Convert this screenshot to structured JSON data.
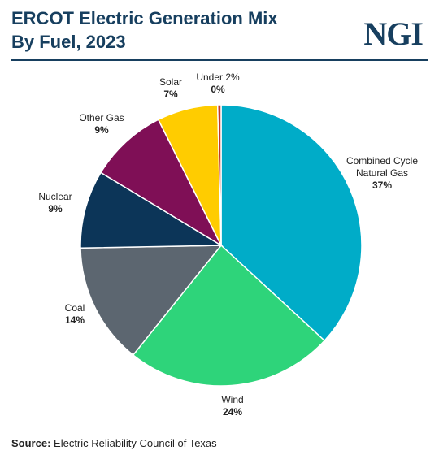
{
  "header": {
    "title_line1": "ERCOT Electric Generation Mix",
    "title_line2": "By Fuel, 2023",
    "logo": "NGI"
  },
  "footer": {
    "source_label": "Source:",
    "source_text": "Electric Reliability Council of Texas"
  },
  "chart_data": {
    "type": "pie",
    "title": "ERCOT Electric Generation Mix By Fuel, 2023",
    "slices": [
      {
        "name": [
          "Combined Cycle",
          "Natural Gas"
        ],
        "value": 37,
        "label": "37%",
        "color": "#00acc8"
      },
      {
        "name": [
          "Wind"
        ],
        "value": 24,
        "label": "24%",
        "color": "#2ed47a"
      },
      {
        "name": [
          "Coal"
        ],
        "value": 14,
        "label": "14%",
        "color": "#5c6670"
      },
      {
        "name": [
          "Nuclear"
        ],
        "value": 9,
        "label": "9%",
        "color": "#0c3558"
      },
      {
        "name": [
          "Other Gas"
        ],
        "value": 9,
        "label": "9%",
        "color": "#7f0f56"
      },
      {
        "name": [
          "Solar"
        ],
        "value": 7,
        "label": "7%",
        "color": "#ffcc00"
      },
      {
        "name": [
          "Under 2%"
        ],
        "value": 0.4,
        "label": "0%",
        "color": "#c0392b"
      }
    ],
    "start_angle": "12 o'clock",
    "direction": "clockwise",
    "legend": "none; labels outside slices"
  }
}
